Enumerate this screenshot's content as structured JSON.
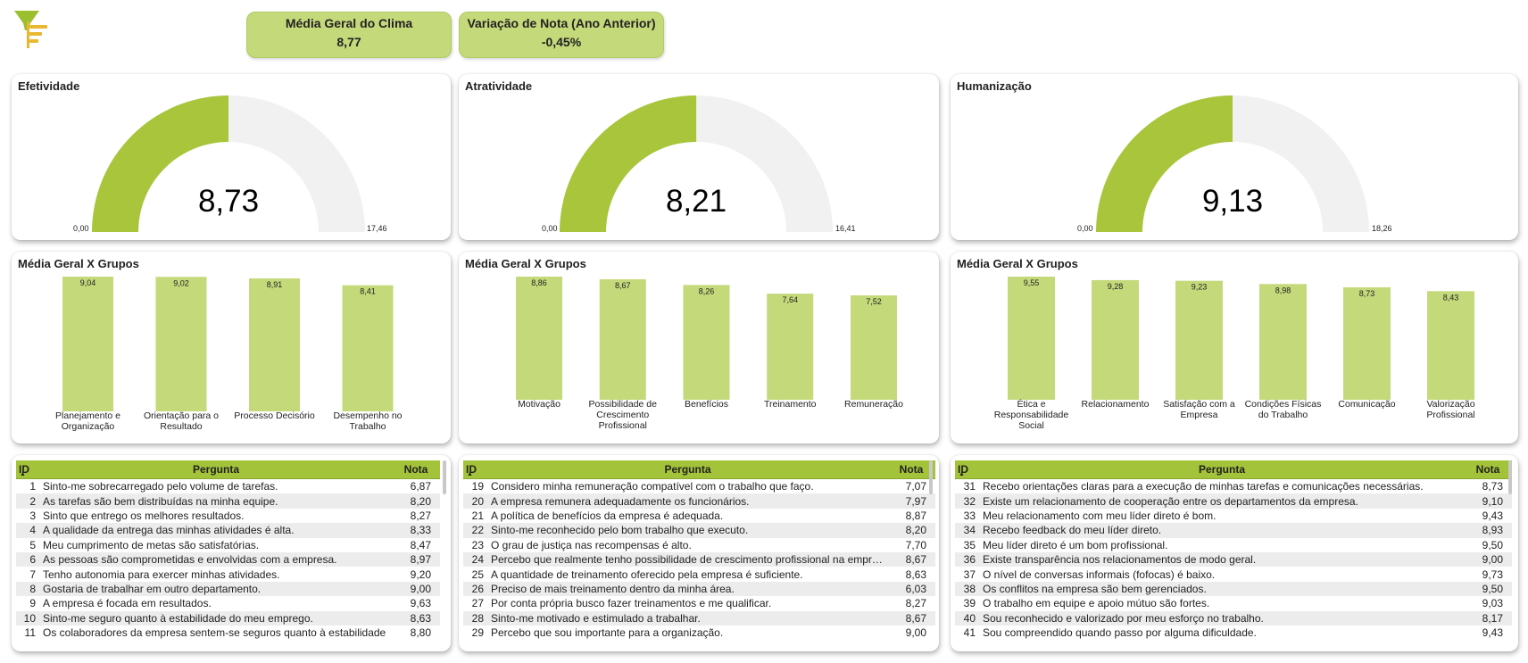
{
  "kpis": [
    {
      "title": "Média Geral do Clima",
      "value": "8,77"
    },
    {
      "title": "Variação de Nota (Ano Anterior)",
      "value": "-0,45%"
    }
  ],
  "colors": {
    "accent": "#a3c33a",
    "bar": "#c4d97a",
    "gauge_fill": "#a8c53c",
    "gauge_bg": "#f1f1f1",
    "header_bg": "#a3c33a"
  },
  "icons": {
    "logo": "funnel-logo-icon",
    "sort": "sort-ascending-icon"
  },
  "gauges": [
    {
      "title": "Efetividade",
      "value": 8.73,
      "value_label": "8,73",
      "min_label": "0,00",
      "max_label": "17,46",
      "max": 17.46
    },
    {
      "title": "Atratividade",
      "value": 8.21,
      "value_label": "8,21",
      "min_label": "0,00",
      "max_label": "16,41",
      "max": 16.41
    },
    {
      "title": "Humanização",
      "value": 9.13,
      "value_label": "9,13",
      "min_label": "0,00",
      "max_label": "18,26",
      "max": 18.26
    }
  ],
  "chart_data": [
    {
      "type": "bar",
      "title": "Média Geral X Grupos",
      "categories": [
        "Planejamento e Organização",
        "Orientação para o Resultado",
        "Processo Decisório",
        "Desempenho no Trabalho"
      ],
      "values": [
        9.04,
        9.02,
        8.91,
        8.41
      ],
      "labels": [
        "9,04",
        "9,02",
        "8,91",
        "8,41"
      ]
    },
    {
      "type": "bar",
      "title": "Média Geral X Grupos",
      "categories": [
        "Motivação",
        "Possibilidade de Crescimento Profissional",
        "Benefícios",
        "Treinamento",
        "Remuneração"
      ],
      "values": [
        8.86,
        8.67,
        8.26,
        7.64,
        7.52
      ],
      "labels": [
        "8,86",
        "8,67",
        "8,26",
        "7,64",
        "7,52"
      ]
    },
    {
      "type": "bar",
      "title": "Média Geral X Grupos",
      "categories": [
        "Ética e Responsabilidade Social",
        "Relacionamento",
        "Satisfação com a Empresa",
        "Condições Físicas do Trabalho",
        "Comunicação",
        "Valorização Profissional"
      ],
      "values": [
        9.55,
        9.28,
        9.23,
        8.98,
        8.73,
        8.43
      ],
      "labels": [
        "9,55",
        "9,28",
        "9,23",
        "8,98",
        "8,73",
        "8,43"
      ]
    }
  ],
  "tables": [
    {
      "headers": {
        "id": "ID",
        "pergunta": "Pergunta",
        "nota": "Nota"
      },
      "rows": [
        {
          "id": "1",
          "pergunta": "Sinto-me sobrecarregado pelo volume de tarefas.",
          "nota": "6,87"
        },
        {
          "id": "2",
          "pergunta": "As tarefas são bem distribuídas na minha equipe.",
          "nota": "8,20"
        },
        {
          "id": "3",
          "pergunta": "Sinto que entrego os melhores resultados.",
          "nota": "8,27"
        },
        {
          "id": "4",
          "pergunta": "A qualidade da entrega das minhas atividades é alta.",
          "nota": "8,33"
        },
        {
          "id": "5",
          "pergunta": "Meu cumprimento de metas são satisfatórias.",
          "nota": "8,47"
        },
        {
          "id": "6",
          "pergunta": "As pessoas são comprometidas e envolvidas com a empresa.",
          "nota": "8,97"
        },
        {
          "id": "7",
          "pergunta": "Tenho autonomia para exercer minhas atividades.",
          "nota": "9,20"
        },
        {
          "id": "8",
          "pergunta": "Gostaria de trabalhar em outro departamento.",
          "nota": "9,00"
        },
        {
          "id": "9",
          "pergunta": "A empresa é focada em resultados.",
          "nota": "9,63"
        },
        {
          "id": "10",
          "pergunta": "Sinto-me seguro quanto à estabilidade do meu emprego.",
          "nota": "8,63"
        },
        {
          "id": "11",
          "pergunta": "Os colaboradores da empresa sentem-se seguros quanto à estabilidade",
          "nota": "8,80"
        }
      ]
    },
    {
      "headers": {
        "id": "ID",
        "pergunta": "Pergunta",
        "nota": "Nota"
      },
      "rows": [
        {
          "id": "19",
          "pergunta": "Considero minha remuneração compatível com o trabalho que faço.",
          "nota": "7,07"
        },
        {
          "id": "20",
          "pergunta": "A empresa remunera adequadamente os funcionários.",
          "nota": "7,97"
        },
        {
          "id": "21",
          "pergunta": "A política de benefícios da empresa é adequada.",
          "nota": "8,87"
        },
        {
          "id": "22",
          "pergunta": "Sinto-me reconhecido pelo bom trabalho que executo.",
          "nota": "8,20"
        },
        {
          "id": "23",
          "pergunta": "O grau de justiça nas recompensas é alto.",
          "nota": "7,70"
        },
        {
          "id": "24",
          "pergunta": "Percebo que realmente tenho possibilidade de crescimento profissional na empresa.",
          "nota": "8,67"
        },
        {
          "id": "25",
          "pergunta": "A quantidade de treinamento oferecido pela empresa é suficiente.",
          "nota": "8,63"
        },
        {
          "id": "26",
          "pergunta": "Preciso de mais treinamento dentro da minha área.",
          "nota": "6,03"
        },
        {
          "id": "27",
          "pergunta": "Por conta própria busco fazer treinamentos e me qualificar.",
          "nota": "8,27"
        },
        {
          "id": "28",
          "pergunta": "Sinto-me motivado e estimulado a trabalhar.",
          "nota": "8,67"
        },
        {
          "id": "29",
          "pergunta": "Percebo que sou importante para a organização.",
          "nota": "9,00"
        }
      ]
    },
    {
      "headers": {
        "id": "ID",
        "pergunta": "Pergunta",
        "nota": "Nota"
      },
      "rows": [
        {
          "id": "31",
          "pergunta": "Recebo orientações claras para a execução de minhas tarefas e comunicações necessárias.",
          "nota": "8,73"
        },
        {
          "id": "32",
          "pergunta": "Existe um relacionamento de cooperação entre os departamentos da empresa.",
          "nota": "9,10"
        },
        {
          "id": "33",
          "pergunta": "Meu relacionamento com meu líder direto é bom.",
          "nota": "9,43"
        },
        {
          "id": "34",
          "pergunta": "Recebo feedback do meu líder direto.",
          "nota": "8,93"
        },
        {
          "id": "35",
          "pergunta": "Meu líder direto é um bom profissional.",
          "nota": "9,50"
        },
        {
          "id": "36",
          "pergunta": "Existe transparência nos relacionamentos de modo geral.",
          "nota": "9,00"
        },
        {
          "id": "37",
          "pergunta": "O nível de conversas informais (fofocas) é baixo.",
          "nota": "9,73"
        },
        {
          "id": "38",
          "pergunta": "Os conflitos na empresa são bem gerenciados.",
          "nota": "9,50"
        },
        {
          "id": "39",
          "pergunta": "O trabalho em equipe e apoio mútuo são fortes.",
          "nota": "9,03"
        },
        {
          "id": "40",
          "pergunta": "Sou reconhecido e valorizado por meu esforço no trabalho.",
          "nota": "8,17"
        },
        {
          "id": "41",
          "pergunta": "Sou compreendido quando passo por alguma dificuldade.",
          "nota": "9,43"
        }
      ]
    }
  ]
}
